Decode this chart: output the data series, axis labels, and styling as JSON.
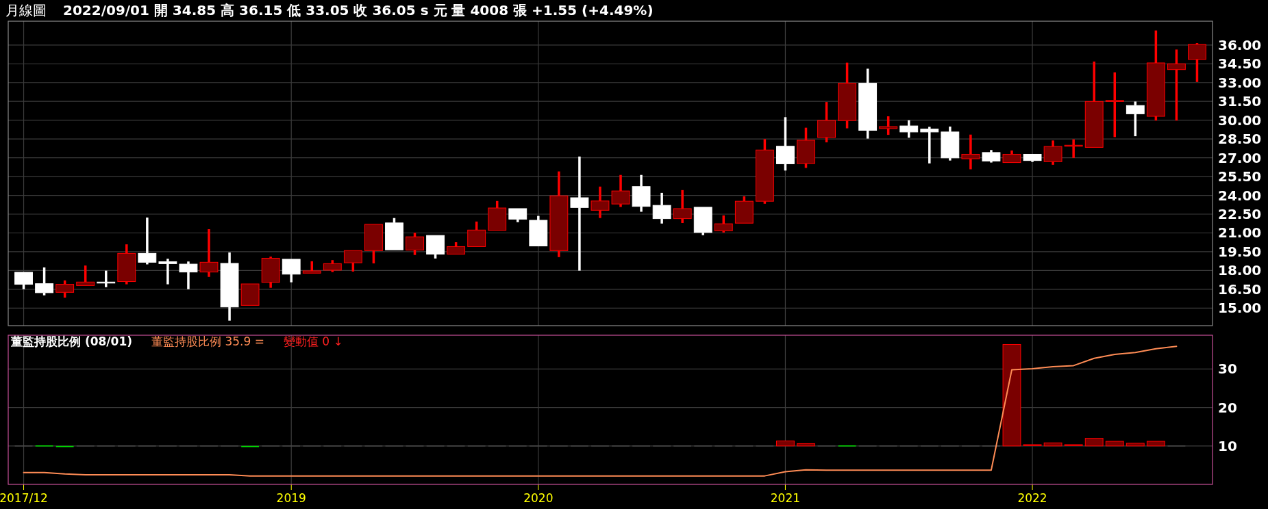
{
  "chart_data": [
    {
      "type": "candlestick",
      "title": "月線圖",
      "subtitle": "2022/09/01 開 34.85 高 36.15 低 33.05 收 36.05 s 元 量 4008 張 +1.55 (+4.49%)",
      "categories": [
        "2017/12",
        null,
        null,
        null,
        null,
        null,
        null,
        null,
        null,
        null,
        null,
        null,
        null,
        "2019",
        null,
        null,
        null,
        null,
        null,
        null,
        null,
        null,
        null,
        null,
        null,
        "2020",
        null,
        null,
        null,
        null,
        null,
        null,
        null,
        null,
        null,
        null,
        null,
        "2021",
        null,
        null,
        null,
        null,
        null,
        null,
        null,
        null,
        null,
        null,
        null,
        "2022",
        null,
        null,
        null,
        null,
        null,
        null,
        null,
        null
      ],
      "ohlc": [
        [
          17.86,
          17.86,
          16.51,
          16.9
        ],
        [
          16.95,
          18.25,
          16.02,
          16.23
        ],
        [
          16.26,
          17.21,
          15.84,
          16.9
        ],
        [
          16.8,
          18.4,
          16.8,
          17.08
        ],
        [
          17.08,
          17.99,
          16.67,
          17.05
        ],
        [
          17.12,
          20.09,
          16.9,
          19.37
        ],
        [
          19.37,
          22.23,
          18.49,
          18.66
        ],
        [
          18.7,
          18.94,
          16.9,
          18.55
        ],
        [
          18.51,
          18.72,
          16.51,
          17.88
        ],
        [
          17.88,
          21.3,
          17.49,
          18.66
        ],
        [
          18.57,
          19.44,
          14.0,
          15.09
        ],
        [
          15.22,
          16.93,
          15.22,
          16.93
        ],
        [
          17.06,
          19.11,
          16.62,
          18.98
        ],
        [
          18.9,
          18.9,
          17.06,
          17.71
        ],
        [
          17.79,
          18.74,
          17.79,
          17.97
        ],
        [
          18.03,
          18.83,
          17.88,
          18.55
        ],
        [
          18.62,
          19.59,
          17.92,
          19.59
        ],
        [
          19.59,
          21.69,
          18.57,
          21.69
        ],
        [
          21.8,
          22.19,
          19.65,
          19.65
        ],
        [
          19.63,
          21.02,
          19.24,
          20.69
        ],
        [
          20.8,
          20.8,
          18.96,
          19.31
        ],
        [
          19.31,
          20.26,
          19.31,
          19.91
        ],
        [
          19.91,
          21.91,
          19.91,
          21.23
        ],
        [
          21.21,
          23.55,
          21.21,
          22.99
        ],
        [
          22.94,
          22.94,
          21.86,
          22.1
        ],
        [
          22.01,
          22.36,
          19.96,
          19.96
        ],
        [
          19.59,
          25.91,
          19.07,
          23.96
        ],
        [
          23.81,
          27.1,
          17.99,
          23.03
        ],
        [
          22.81,
          24.7,
          22.19,
          23.55
        ],
        [
          23.31,
          25.63,
          23.07,
          24.35
        ],
        [
          24.7,
          25.63,
          22.69,
          23.12
        ],
        [
          23.2,
          24.2,
          21.75,
          22.14
        ],
        [
          22.14,
          24.42,
          21.79,
          22.94
        ],
        [
          23.05,
          23.05,
          20.82,
          21.04
        ],
        [
          21.17,
          22.4,
          21.04,
          21.73
        ],
        [
          21.78,
          23.92,
          21.78,
          23.53
        ],
        [
          23.53,
          28.49,
          23.33,
          27.62
        ],
        [
          27.92,
          30.24,
          25.98,
          26.52
        ],
        [
          26.54,
          29.4,
          26.19,
          28.4
        ],
        [
          28.62,
          31.45,
          28.23,
          29.98
        ],
        [
          29.97,
          34.59,
          29.35,
          32.95
        ],
        [
          32.95,
          34.11,
          28.53,
          29.19
        ],
        [
          29.33,
          30.31,
          28.83,
          29.49
        ],
        [
          29.54,
          29.99,
          28.6,
          29.06
        ],
        [
          29.29,
          29.47,
          26.55,
          29.06
        ],
        [
          29.06,
          29.49,
          26.78,
          26.99
        ],
        [
          26.92,
          28.85,
          26.08,
          27.28
        ],
        [
          27.42,
          27.62,
          26.62,
          26.74
        ],
        [
          26.62,
          27.58,
          26.62,
          27.28
        ],
        [
          27.28,
          27.28,
          26.67,
          26.78
        ],
        [
          26.69,
          28.38,
          26.44,
          27.9
        ],
        [
          27.95,
          28.47,
          26.99,
          28.0
        ],
        [
          27.83,
          34.68,
          27.83,
          31.49
        ],
        [
          31.49,
          33.82,
          28.65,
          31.58
        ],
        [
          31.17,
          31.49,
          28.72,
          30.51
        ],
        [
          30.31,
          37.16,
          29.97,
          34.57
        ],
        [
          34.04,
          35.64,
          29.97,
          34.5
        ],
        [
          34.85,
          36.15,
          33.05,
          36.05
        ]
      ],
      "colors": [
        "#ffffff",
        "#ffffff",
        "#7a0000",
        "#7a0000",
        "#ffffff",
        "#7a0000",
        "#ffffff",
        "#ffffff",
        "#ffffff",
        "#7a0000",
        "#ffffff",
        "#7a0000",
        "#7a0000",
        "#ffffff",
        "#7a0000",
        "#7a0000",
        "#7a0000",
        "#7a0000",
        "#ffffff",
        "#7a0000",
        "#ffffff",
        "#7a0000",
        "#7a0000",
        "#7a0000",
        "#ffffff",
        "#ffffff",
        "#7a0000",
        "#ffffff",
        "#7a0000",
        "#7a0000",
        "#ffffff",
        "#ffffff",
        "#7a0000",
        "#ffffff",
        "#7a0000",
        "#7a0000",
        "#7a0000",
        "#ffffff",
        "#7a0000",
        "#7a0000",
        "#7a0000",
        "#ffffff",
        "#7a0000",
        "#ffffff",
        "#ffffff",
        "#ffffff",
        "#7a0000",
        "#ffffff",
        "#7a0000",
        "#ffffff",
        "#7a0000",
        "#7a0000",
        "#7a0000",
        "#7a0000",
        "#ffffff",
        "#7a0000",
        "#7a0000",
        "#7a0000"
      ],
      "ylim": [
        13.6,
        37.9
      ],
      "yticks": [
        {
          "value": 15,
          "label": "15.00"
        },
        {
          "value": 16.5,
          "label": "16.50"
        },
        {
          "value": 18,
          "label": "18.00"
        },
        {
          "value": 19.5,
          "label": "19.50"
        },
        {
          "value": 21,
          "label": "21.00"
        },
        {
          "value": 22.5,
          "label": "22.50"
        },
        {
          "value": 24,
          "label": "24.00"
        },
        {
          "value": 25.5,
          "label": "25.50"
        },
        {
          "value": 27,
          "label": "27.00"
        },
        {
          "value": 28.5,
          "label": "28.50"
        },
        {
          "value": 30,
          "label": "30.00"
        },
        {
          "value": 31.5,
          "label": "31.50"
        },
        {
          "value": 33,
          "label": "33.00"
        },
        {
          "value": 34.5,
          "label": "34.50"
        },
        {
          "value": 36,
          "label": "36.00"
        }
      ],
      "grid": true,
      "tick_labels": "y"
    },
    {
      "type": "bar",
      "title": "董監持股比例 (08/01)",
      "annotations": [
        "董監持股比例 35.9 =",
        "變動值 0 ↓"
      ],
      "categories": [
        "2017/12",
        null,
        null,
        null,
        null,
        null,
        null,
        null,
        null,
        null,
        null,
        null,
        null,
        "2019",
        null,
        null,
        null,
        null,
        null,
        null,
        null,
        null,
        null,
        null,
        null,
        "2020",
        null,
        null,
        null,
        null,
        null,
        null,
        null,
        null,
        null,
        null,
        null,
        "2021",
        null,
        null,
        null,
        null,
        null,
        null,
        null,
        null,
        null,
        null,
        null,
        "2022",
        null,
        null,
        null,
        null,
        null,
        null,
        null,
        null
      ],
      "series": [
        {
          "type": "bar",
          "base": [
            10,
            10,
            10,
            10,
            10,
            10,
            10,
            10,
            10,
            10,
            10,
            10,
            10,
            10,
            10,
            10,
            10,
            10,
            10,
            10,
            10,
            10,
            10,
            10,
            10,
            10,
            10,
            10,
            10,
            10,
            10,
            10,
            10,
            10,
            10,
            10,
            10,
            10,
            10,
            10,
            10,
            10,
            10,
            10,
            10,
            10,
            10,
            10,
            10,
            10,
            10,
            10,
            10,
            10,
            10,
            10,
            10,
            null
          ],
          "values": [
            0,
            -0.1,
            -0.3,
            0,
            0,
            0,
            0,
            0,
            0,
            0,
            0,
            -0.3,
            0,
            0,
            0,
            0,
            0,
            0,
            0,
            0,
            0,
            0,
            0,
            0,
            0,
            0,
            0,
            0,
            0,
            0,
            0,
            0,
            0,
            0,
            0,
            0,
            0,
            1.3,
            0.6,
            0,
            -0.1,
            0,
            0,
            0,
            0,
            0,
            0,
            0,
            26.4,
            0.2,
            0.8,
            0.2,
            2.0,
            1.2,
            0.7,
            1.2,
            0,
            null
          ],
          "colors": [
            "#4a4a4a",
            "#00e000",
            "#00e000",
            "#4a4a4a",
            "#4a4a4a",
            "#4a4a4a",
            "#4a4a4a",
            "#4a4a4a",
            "#4a4a4a",
            "#4a4a4a",
            "#4a4a4a",
            "#00e000",
            "#4a4a4a",
            "#4a4a4a",
            "#4a4a4a",
            "#4a4a4a",
            "#4a4a4a",
            "#4a4a4a",
            "#4a4a4a",
            "#4a4a4a",
            "#4a4a4a",
            "#4a4a4a",
            "#4a4a4a",
            "#4a4a4a",
            "#4a4a4a",
            "#4a4a4a",
            "#4a4a4a",
            "#4a4a4a",
            "#4a4a4a",
            "#4a4a4a",
            "#4a4a4a",
            "#4a4a4a",
            "#4a4a4a",
            "#4a4a4a",
            "#4a4a4a",
            "#4a4a4a",
            "#4a4a4a",
            "#7a0000",
            "#7a0000",
            "#4a4a4a",
            "#00e000",
            "#4a4a4a",
            "#4a4a4a",
            "#4a4a4a",
            "#4a4a4a",
            "#4a4a4a",
            "#4a4a4a",
            "#4a4a4a",
            "#7a0000",
            "#7a0000",
            "#7a0000",
            "#7a0000",
            "#7a0000",
            "#7a0000",
            "#7a0000",
            "#7a0000",
            "#4a4a4a",
            "#4a4a4a"
          ]
        },
        {
          "type": "line",
          "color": "#ff8c55",
          "values": [
            3.05,
            3.05,
            2.7,
            2.5,
            2.5,
            2.5,
            2.5,
            2.5,
            2.5,
            2.5,
            2.5,
            2.2,
            2.2,
            2.2,
            2.2,
            2.2,
            2.2,
            2.2,
            2.2,
            2.2,
            2.2,
            2.2,
            2.2,
            2.2,
            2.2,
            2.2,
            2.2,
            2.2,
            2.2,
            2.2,
            2.2,
            2.2,
            2.2,
            2.2,
            2.2,
            2.2,
            2.2,
            3.3,
            3.8,
            3.7,
            3.7,
            3.7,
            3.7,
            3.7,
            3.7,
            3.7,
            3.7,
            3.7,
            29.8,
            30.1,
            30.6,
            30.9,
            32.8,
            33.8,
            34.3,
            35.3,
            35.9,
            null
          ]
        }
      ],
      "ylim": [
        0,
        38.8
      ],
      "yticks": [
        10,
        20,
        30
      ],
      "grid": true
    }
  ]
}
